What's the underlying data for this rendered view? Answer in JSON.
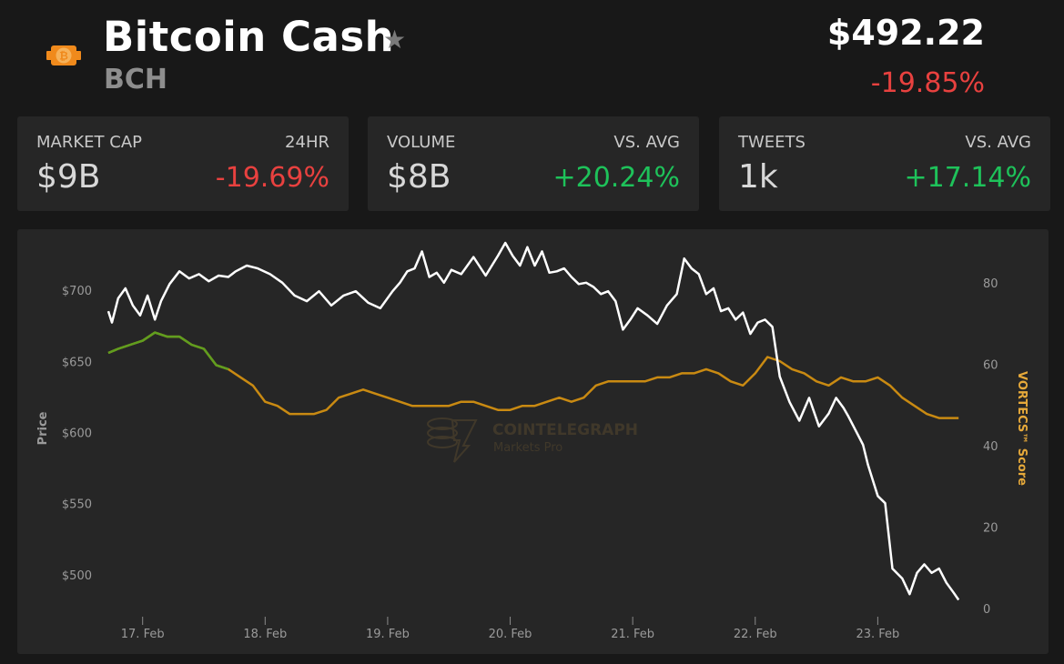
{
  "header": {
    "name": "Bitcoin Cash",
    "symbol": "BCH",
    "price": "$492.22",
    "change": "-19.85%",
    "logo_icon": "bitcoin-cash-logo-icon",
    "star_icon": "star-icon"
  },
  "stats": {
    "market_cap": {
      "label": "MARKET CAP",
      "sublabel": "24HR",
      "value": "$9B",
      "delta": "-19.69%"
    },
    "volume": {
      "label": "VOLUME",
      "sublabel": "VS. AVG",
      "value": "$8B",
      "delta": "+20.24%"
    },
    "tweets": {
      "label": "TWEETS",
      "sublabel": "VS. AVG",
      "value": "1k",
      "delta": "+17.14%"
    }
  },
  "colors": {
    "price_line": "#ffffff",
    "score_line": "#c98a12",
    "score_high": "#5f9e1f",
    "negative": "#e8413f",
    "positive": "#1ec25a"
  },
  "chart_data": {
    "type": "line",
    "ylabel": "Price",
    "y2label": "VORTECS™ Score",
    "x_ticks": [
      "17. Feb",
      "18. Feb",
      "19. Feb",
      "20. Feb",
      "21. Feb",
      "22. Feb",
      "23. Feb"
    ],
    "y_ticks": [
      "$700",
      "$650",
      "$600",
      "$550",
      "$500"
    ],
    "y_tick_values": [
      700,
      650,
      600,
      550,
      500
    ],
    "y2_ticks": [
      "80",
      "60",
      "40",
      "20",
      "0"
    ],
    "y2_tick_values": [
      80,
      60,
      40,
      20,
      0
    ],
    "ylim": [
      475,
      734
    ],
    "y2lim": [
      0,
      84
    ],
    "xlim": [
      16.72,
      23.74
    ],
    "watermark": {
      "brand": "COINTELEGRAPH",
      "sub": "Markets Pro"
    },
    "series": [
      {
        "name": "Price",
        "axis": "left",
        "x": [
          16.72,
          16.75,
          16.8,
          16.86,
          16.92,
          16.98,
          17.04,
          17.1,
          17.15,
          17.22,
          17.3,
          17.38,
          17.46,
          17.54,
          17.62,
          17.7,
          17.76,
          17.85,
          17.94,
          18.04,
          18.14,
          18.24,
          18.34,
          18.44,
          18.54,
          18.64,
          18.74,
          18.84,
          18.94,
          19.04,
          19.1,
          19.16,
          19.22,
          19.28,
          19.34,
          19.4,
          19.46,
          19.52,
          19.6,
          19.7,
          19.8,
          19.9,
          19.96,
          20.02,
          20.08,
          20.14,
          20.2,
          20.26,
          20.32,
          20.38,
          20.44,
          20.5,
          20.56,
          20.62,
          20.68,
          20.74,
          20.8,
          20.86,
          20.92,
          20.98,
          21.04,
          21.12,
          21.2,
          21.28,
          21.36,
          21.42,
          21.48,
          21.54,
          21.6,
          21.66,
          21.72,
          21.78,
          21.84,
          21.9,
          21.96,
          22.02,
          22.08,
          22.14,
          22.2,
          22.28,
          22.36,
          22.44,
          22.52,
          22.6,
          22.66,
          22.72,
          22.76,
          22.82,
          22.88,
          22.92,
          22.96,
          23.0,
          23.06,
          23.12,
          23.2,
          23.26,
          23.32,
          23.38,
          23.44,
          23.5,
          23.56,
          23.62,
          23.66
        ],
        "y": [
          686,
          678,
          695,
          702,
          690,
          683,
          697,
          680,
          693,
          705,
          714,
          709,
          712,
          707,
          711,
          710,
          714,
          718,
          716,
          712,
          706,
          697,
          693,
          700,
          690,
          697,
          700,
          692,
          688,
          700,
          706,
          714,
          716,
          728,
          710,
          713,
          706,
          715,
          712,
          724,
          711,
          725,
          734,
          725,
          718,
          731,
          718,
          728,
          713,
          714,
          716,
          710,
          705,
          706,
          703,
          698,
          700,
          693,
          673,
          680,
          688,
          683,
          677,
          690,
          698,
          723,
          716,
          712,
          698,
          702,
          686,
          688,
          680,
          685,
          670,
          678,
          680,
          675,
          640,
          622,
          609,
          625,
          605,
          614,
          625,
          618,
          612,
          602,
          592,
          578,
          567,
          556,
          551,
          505,
          498,
          487,
          502,
          508,
          502,
          505,
          495,
          488,
          483
        ]
      },
      {
        "name": "VORTECS™ Score",
        "axis": "right",
        "x": [
          16.72,
          16.8,
          16.9,
          17.0,
          17.1,
          17.2,
          17.3,
          17.4,
          17.5,
          17.6,
          17.7,
          17.8,
          17.9,
          18.0,
          18.1,
          18.2,
          18.3,
          18.4,
          18.5,
          18.6,
          18.7,
          18.8,
          18.9,
          19.0,
          19.1,
          19.2,
          19.3,
          19.4,
          19.5,
          19.6,
          19.7,
          19.8,
          19.9,
          20.0,
          20.1,
          20.2,
          20.3,
          20.4,
          20.5,
          20.6,
          20.7,
          20.8,
          20.9,
          21.0,
          21.1,
          21.2,
          21.3,
          21.4,
          21.5,
          21.6,
          21.7,
          21.8,
          21.9,
          22.0,
          22.1,
          22.2,
          22.3,
          22.4,
          22.5,
          22.6,
          22.7,
          22.8,
          22.9,
          23.0,
          23.1,
          23.2,
          23.3,
          23.4,
          23.5,
          23.6,
          23.66
        ],
        "y": [
          63,
          64,
          65,
          66,
          68,
          67,
          67,
          65,
          64,
          60,
          59,
          57,
          55,
          51,
          50,
          48,
          48,
          48,
          49,
          52,
          53,
          54,
          53,
          52,
          51,
          50,
          50,
          50,
          50,
          51,
          51,
          50,
          49,
          49,
          50,
          50,
          51,
          52,
          51,
          52,
          55,
          56,
          56,
          56,
          56,
          57,
          57,
          58,
          58,
          59,
          58,
          56,
          55,
          58,
          62,
          61,
          59,
          58,
          56,
          55,
          57,
          56,
          56,
          57,
          55,
          52,
          50,
          48,
          47,
          47,
          47
        ],
        "high_until_x": 17.7
      }
    ]
  }
}
